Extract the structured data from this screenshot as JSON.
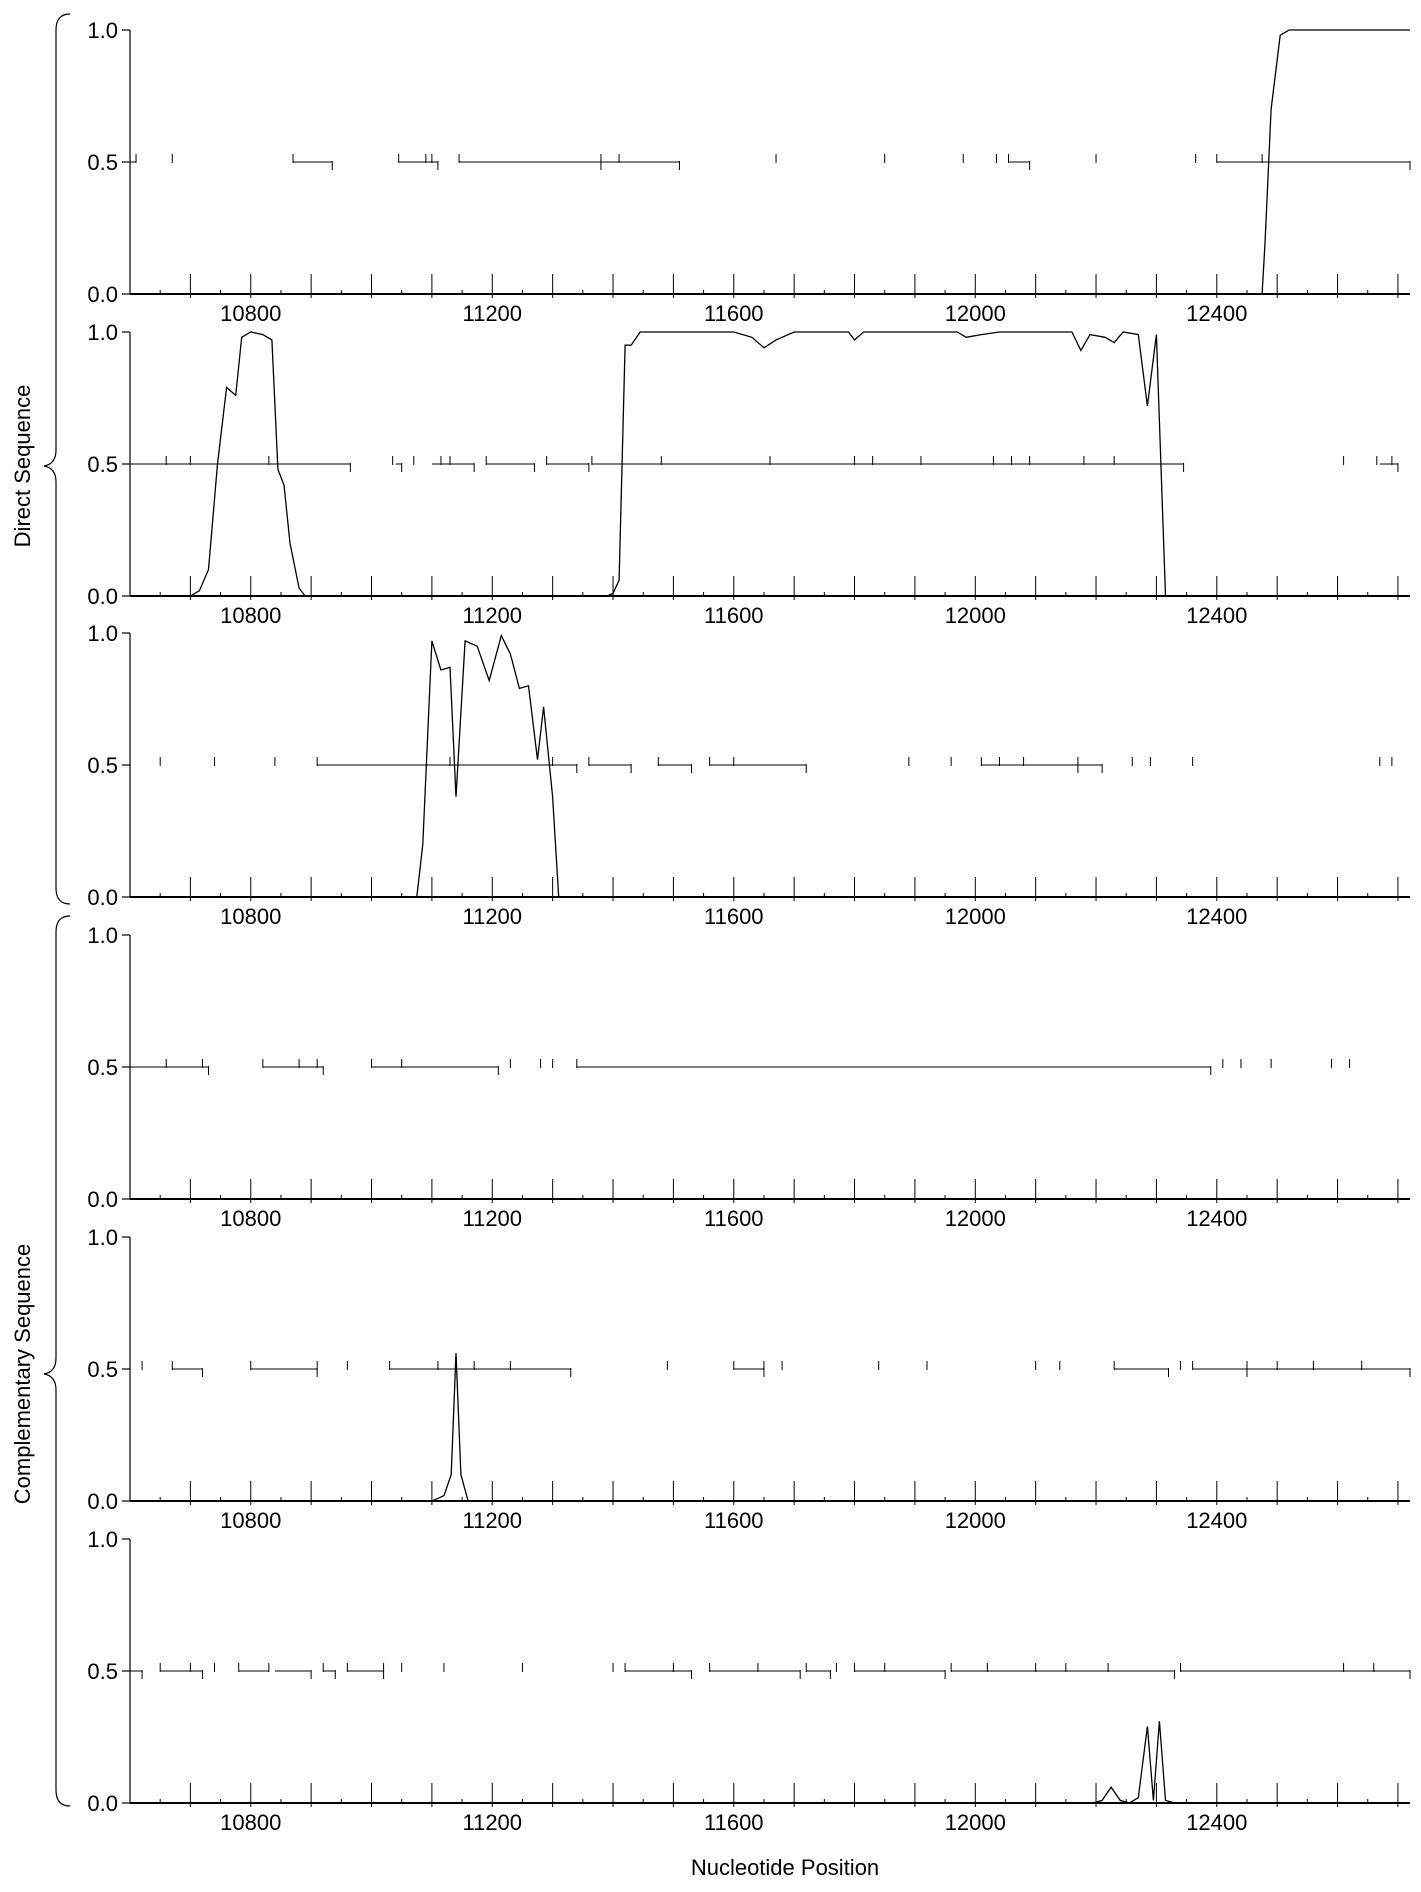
{
  "chart_data": {
    "type": "line",
    "xlabel": "Nucleotide Position",
    "xlim": [
      10600,
      12720
    ],
    "ylim": [
      0,
      1
    ],
    "x_ticks": [
      10800,
      11200,
      11600,
      12000,
      12400
    ],
    "y_ticks": [
      "0.0",
      "0.5",
      "1.0"
    ],
    "groups": [
      {
        "label": "Direct Sequence",
        "panels": [
          0,
          1,
          2
        ]
      },
      {
        "label": "Complementary Sequence",
        "panels": [
          3,
          4,
          5
        ]
      }
    ],
    "panels": [
      {
        "curve": [
          [
            10600,
            0
          ],
          [
            12475,
            0
          ],
          [
            12480,
            0.2
          ],
          [
            12490,
            0.7
          ],
          [
            12505,
            0.98
          ],
          [
            12520,
            1.0
          ],
          [
            12720,
            1.0
          ]
        ],
        "orf_segments": [
          [
            10600,
            10610
          ],
          [
            10870,
            10935
          ],
          [
            11045,
            11110
          ],
          [
            11145,
            11380
          ],
          [
            11380,
            11510
          ],
          [
            12055,
            12090
          ],
          [
            12400,
            12720
          ]
        ],
        "start_marks": [
          10610,
          10670,
          10870,
          11045,
          11090,
          11100,
          11145,
          11380,
          11410,
          11670,
          11850,
          11980,
          12035,
          12055,
          12200,
          12365,
          12400,
          12475
        ],
        "stop_marks": [
          10935,
          11110,
          11380,
          11510,
          12090,
          12720
        ]
      },
      {
        "curve": [
          [
            10600,
            0
          ],
          [
            10700,
            0
          ],
          [
            10715,
            0.02
          ],
          [
            10730,
            0.1
          ],
          [
            10745,
            0.5
          ],
          [
            10760,
            0.79
          ],
          [
            10775,
            0.76
          ],
          [
            10785,
            0.98
          ],
          [
            10800,
            1.0
          ],
          [
            10820,
            0.99
          ],
          [
            10835,
            0.97
          ],
          [
            10845,
            0.48
          ],
          [
            10855,
            0.42
          ],
          [
            10865,
            0.2
          ],
          [
            10880,
            0.03
          ],
          [
            10890,
            0
          ],
          [
            11390,
            0
          ],
          [
            11400,
            0.01
          ],
          [
            11410,
            0.06
          ],
          [
            11420,
            0.95
          ],
          [
            11430,
            0.95
          ],
          [
            11445,
            1.0
          ],
          [
            11600,
            1.0
          ],
          [
            11630,
            0.98
          ],
          [
            11650,
            0.94
          ],
          [
            11670,
            0.97
          ],
          [
            11700,
            1.0
          ],
          [
            11790,
            1.0
          ],
          [
            11800,
            0.97
          ],
          [
            11815,
            1.0
          ],
          [
            11970,
            1.0
          ],
          [
            11985,
            0.98
          ],
          [
            12010,
            0.99
          ],
          [
            12040,
            1.0
          ],
          [
            12160,
            1.0
          ],
          [
            12175,
            0.93
          ],
          [
            12190,
            0.99
          ],
          [
            12215,
            0.98
          ],
          [
            12230,
            0.96
          ],
          [
            12245,
            1.0
          ],
          [
            12270,
            0.99
          ],
          [
            12285,
            0.72
          ],
          [
            12300,
            0.99
          ],
          [
            12315,
            0
          ],
          [
            12720,
            0
          ]
        ],
        "orf_segments": [
          [
            10600,
            10965
          ],
          [
            11040,
            11050
          ],
          [
            11100,
            11170
          ],
          [
            11190,
            11270
          ],
          [
            11290,
            11360
          ],
          [
            11365,
            12345
          ],
          [
            12670,
            12700
          ]
        ],
        "start_marks": [
          10660,
          10700,
          10830,
          11035,
          11070,
          11115,
          11130,
          11190,
          11290,
          11365,
          11480,
          11660,
          11800,
          11830,
          11910,
          12030,
          12060,
          12090,
          12180,
          12230,
          12610,
          12665,
          12690
        ],
        "stop_marks": [
          10965,
          11050,
          11170,
          11270,
          11360,
          12345,
          12700
        ]
      },
      {
        "curve": [
          [
            10600,
            0
          ],
          [
            11075,
            0
          ],
          [
            11085,
            0.2
          ],
          [
            11100,
            0.97
          ],
          [
            11115,
            0.86
          ],
          [
            11130,
            0.87
          ],
          [
            11140,
            0.38
          ],
          [
            11155,
            0.97
          ],
          [
            11175,
            0.95
          ],
          [
            11195,
            0.82
          ],
          [
            11215,
            0.99
          ],
          [
            11230,
            0.92
          ],
          [
            11245,
            0.79
          ],
          [
            11260,
            0.8
          ],
          [
            11275,
            0.52
          ],
          [
            11285,
            0.72
          ],
          [
            11300,
            0.38
          ],
          [
            11310,
            0
          ],
          [
            12720,
            0
          ]
        ],
        "orf_segments": [
          [
            10910,
            11340
          ],
          [
            11360,
            11430
          ],
          [
            11475,
            11530
          ],
          [
            11560,
            11720
          ],
          [
            12010,
            12170
          ],
          [
            12170,
            12210
          ]
        ],
        "start_marks": [
          10650,
          10740,
          10840,
          10910,
          11130,
          11300,
          11360,
          11475,
          11560,
          11600,
          11890,
          11960,
          12010,
          12040,
          12080,
          12170,
          12260,
          12290,
          12360,
          12670,
          12690
        ],
        "stop_marks": [
          11340,
          11430,
          11530,
          11720,
          12170,
          12210
        ]
      },
      {
        "curve": [],
        "orf_segments": [
          [
            10600,
            10730
          ],
          [
            10820,
            10920
          ],
          [
            11000,
            11210
          ],
          [
            11340,
            12390
          ]
        ],
        "start_marks": [
          10600,
          10660,
          10720,
          10820,
          10880,
          10910,
          11000,
          11050,
          11230,
          11280,
          11300,
          11340,
          12410,
          12440,
          12490,
          12590,
          12620
        ],
        "stop_marks": [
          10730,
          10920,
          11210,
          12390
        ]
      },
      {
        "curve": [
          [
            10600,
            0
          ],
          [
            11100,
            0
          ],
          [
            11120,
            0.02
          ],
          [
            11132,
            0.1
          ],
          [
            11140,
            0.56
          ],
          [
            11148,
            0.1
          ],
          [
            11160,
            0
          ],
          [
            12720,
            0
          ]
        ],
        "orf_segments": [
          [
            10670,
            10720
          ],
          [
            10800,
            10910
          ],
          [
            11030,
            11330
          ],
          [
            11600,
            11650
          ],
          [
            12230,
            12320
          ],
          [
            12360,
            12450
          ],
          [
            12450,
            12720
          ]
        ],
        "start_marks": [
          10620,
          10670,
          10800,
          10910,
          10960,
          11030,
          11110,
          11170,
          11230,
          11490,
          11600,
          11650,
          11680,
          11840,
          11920,
          12100,
          12140,
          12230,
          12340,
          12360,
          12450,
          12500,
          12560,
          12640
        ],
        "stop_marks": [
          10720,
          10910,
          11330,
          11650,
          12320,
          12450,
          12720
        ]
      },
      {
        "curve": [
          [
            10600,
            0
          ],
          [
            12195,
            0
          ],
          [
            12210,
            0.01
          ],
          [
            12225,
            0.06
          ],
          [
            12240,
            0.01
          ],
          [
            12255,
            0
          ],
          [
            12270,
            0.02
          ],
          [
            12285,
            0.29
          ],
          [
            12295,
            0.01
          ],
          [
            12305,
            0.31
          ],
          [
            12315,
            0.01
          ],
          [
            12330,
            0
          ],
          [
            12720,
            0
          ]
        ],
        "orf_segments": [
          [
            10600,
            10620
          ],
          [
            10650,
            10720
          ],
          [
            10780,
            10830
          ],
          [
            10840,
            10900
          ],
          [
            10920,
            10940
          ],
          [
            10960,
            11020
          ],
          [
            11420,
            11530
          ],
          [
            11560,
            11710
          ],
          [
            11720,
            11760
          ],
          [
            11800,
            11950
          ],
          [
            11960,
            12330
          ],
          [
            12340,
            12720
          ]
        ],
        "start_marks": [
          10650,
          10700,
          10740,
          10780,
          10830,
          10920,
          10960,
          11020,
          11050,
          11120,
          11250,
          11400,
          11420,
          11500,
          11560,
          11640,
          11720,
          11770,
          11800,
          11850,
          11960,
          12020,
          12100,
          12150,
          12220,
          12340,
          12610,
          12660
        ],
        "stop_marks": [
          10620,
          10720,
          10900,
          10940,
          11020,
          11530,
          11710,
          11760,
          11950,
          12330,
          12720
        ]
      }
    ]
  }
}
